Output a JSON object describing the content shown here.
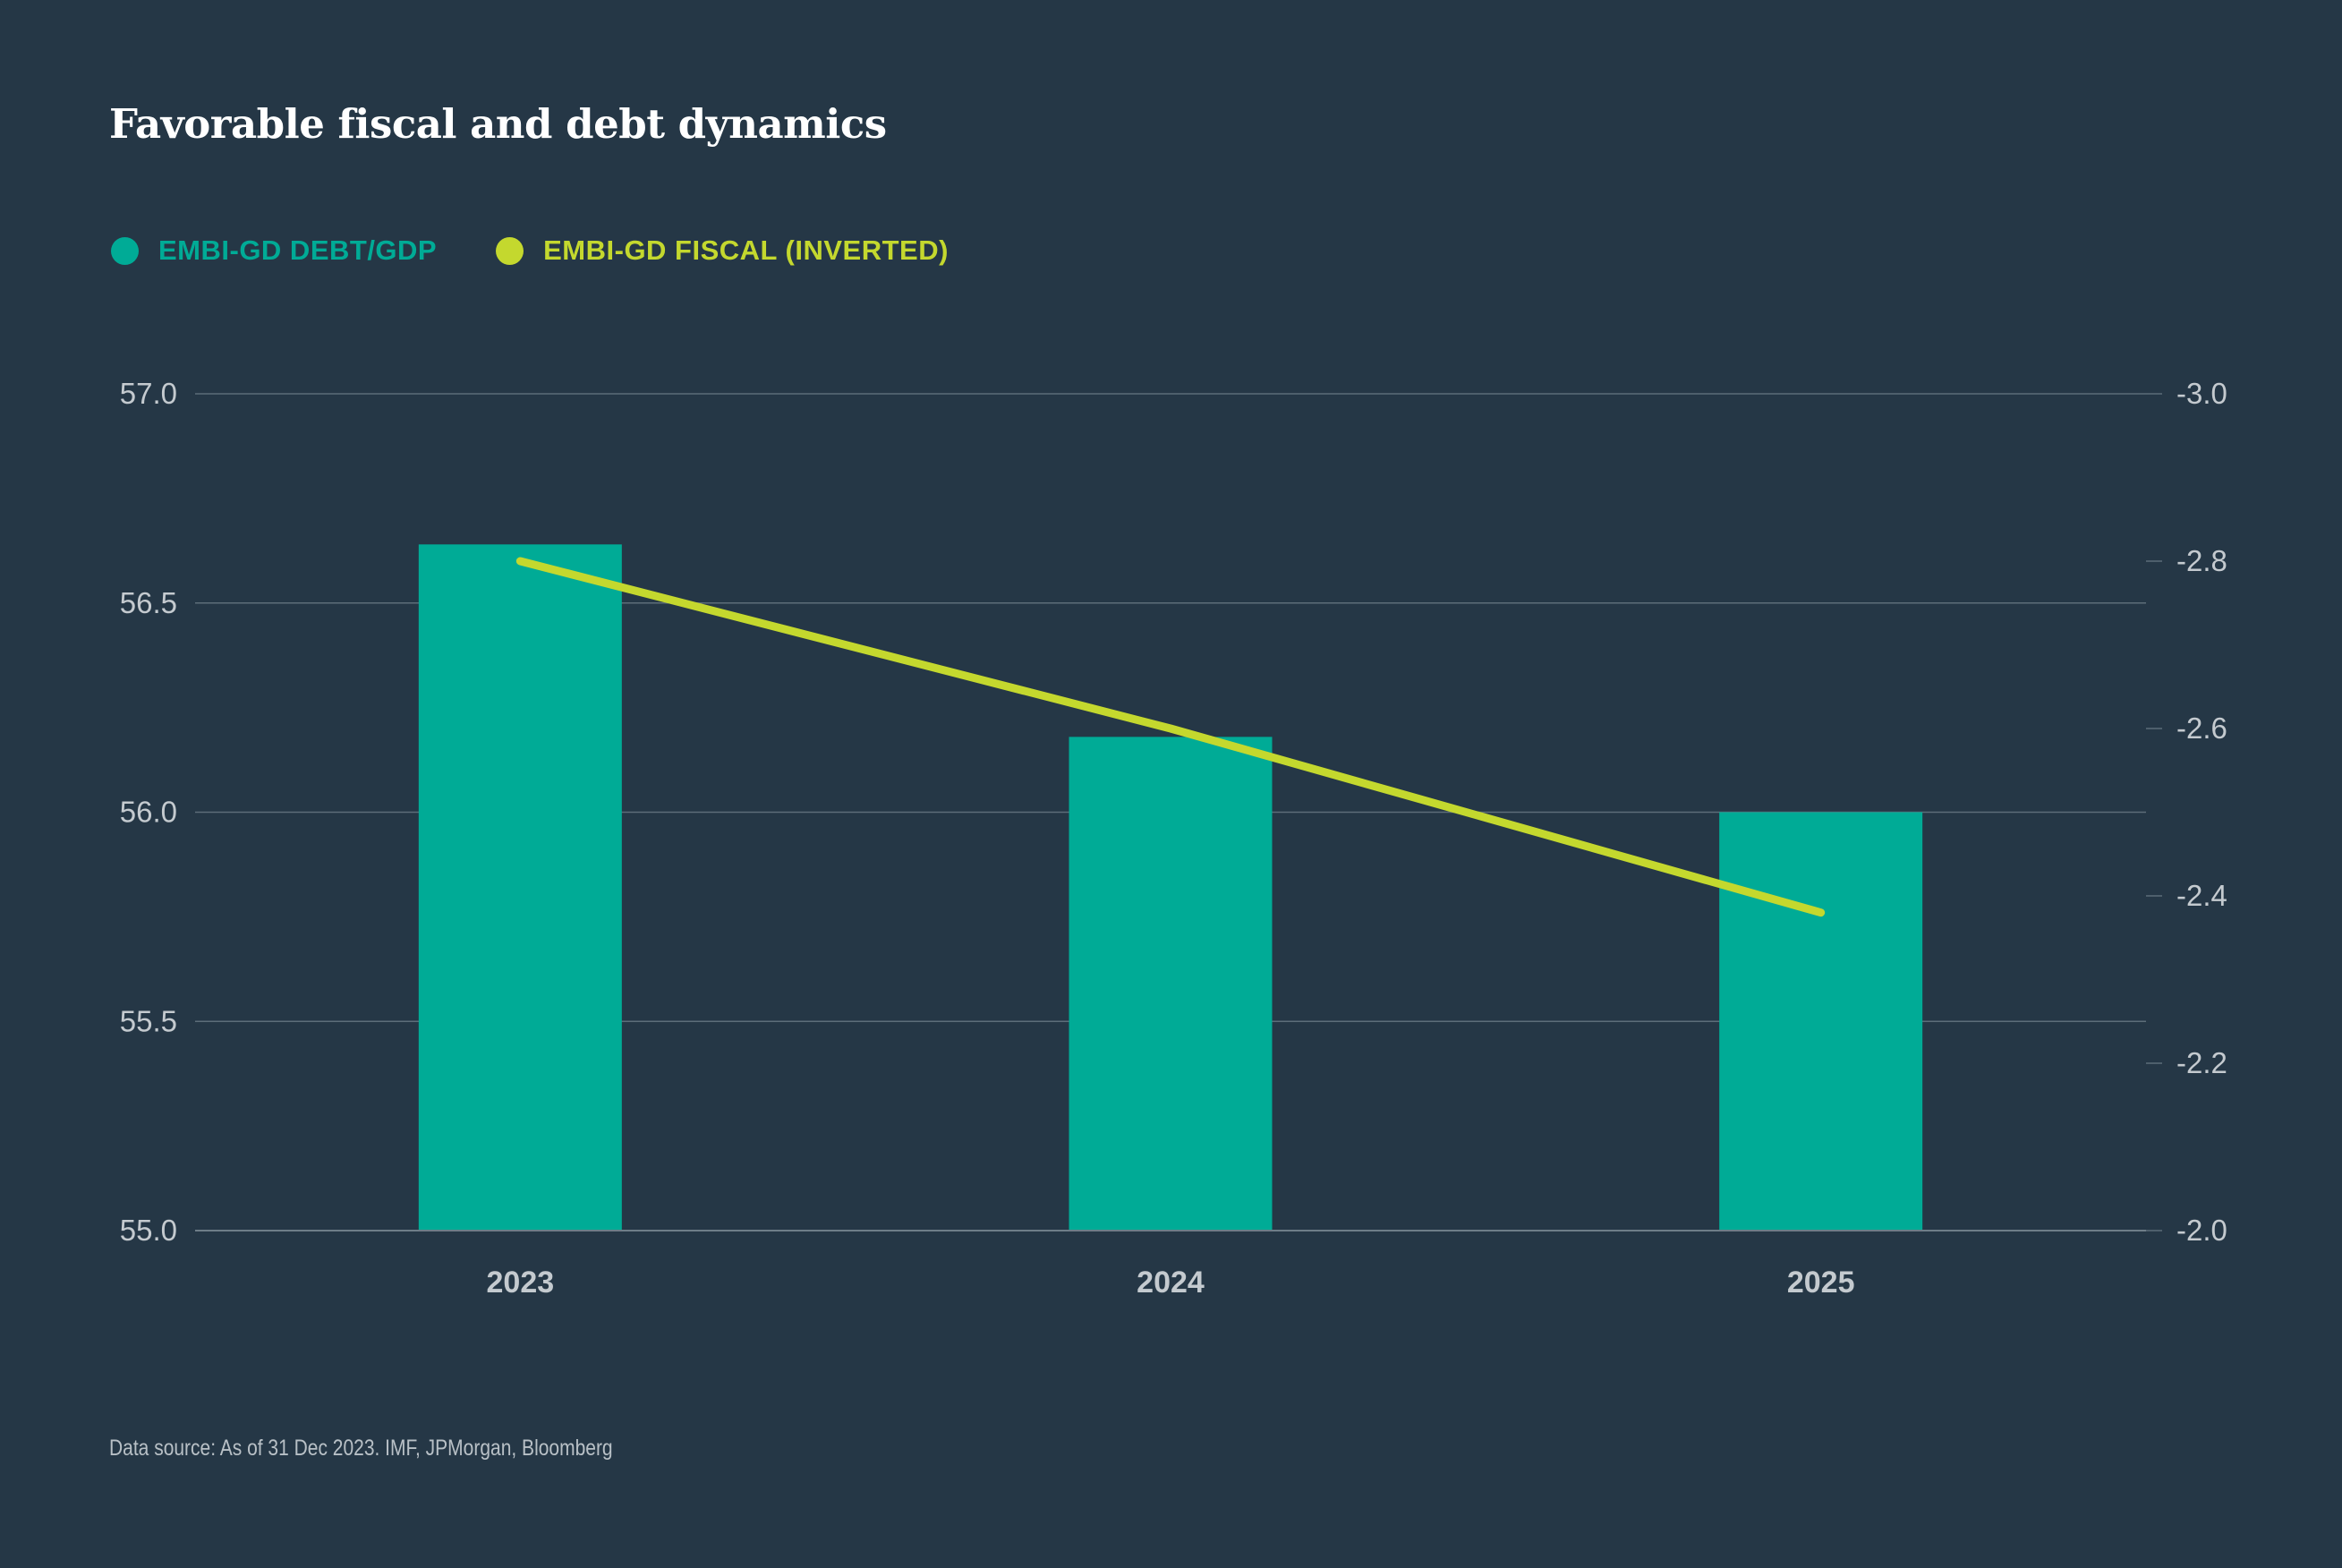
{
  "title": "Favorable fiscal and debt dynamics",
  "legend": [
    {
      "label": "EMBI-GD DEBT/GDP",
      "color": "#00ab96"
    },
    {
      "label": "EMBI-GD FISCAL (INVERTED)",
      "color": "#c4d82e"
    }
  ],
  "source": "Data source: As of 31 Dec 2023. IMF, JPMorgan, Bloomberg",
  "chart_data": {
    "type": "bar",
    "title": "Favorable fiscal and debt dynamics",
    "categories": [
      "2023",
      "2024",
      "2025"
    ],
    "series": [
      {
        "name": "EMBI-GD DEBT/GDP",
        "type": "bar",
        "axis": "left",
        "values": [
          56.64,
          56.18,
          56.0
        ],
        "color": "#00ab96"
      },
      {
        "name": "EMBI-GD FISCAL (INVERTED)",
        "type": "line",
        "axis": "right",
        "values": [
          -2.8,
          -2.6,
          -2.38
        ],
        "color": "#c4d82e"
      }
    ],
    "y_left": {
      "min": 55.0,
      "max": 57.0,
      "ticks": [
        "57.0",
        "56.5",
        "56.0",
        "55.5",
        "55.0"
      ]
    },
    "y_right": {
      "min": -2.0,
      "max": -3.0,
      "inverted": true,
      "ticks": [
        "-3.0",
        "-2.8",
        "-2.6",
        "-2.4",
        "-2.2",
        "-2.0"
      ]
    },
    "grid": true,
    "legend_position": "top-left"
  }
}
